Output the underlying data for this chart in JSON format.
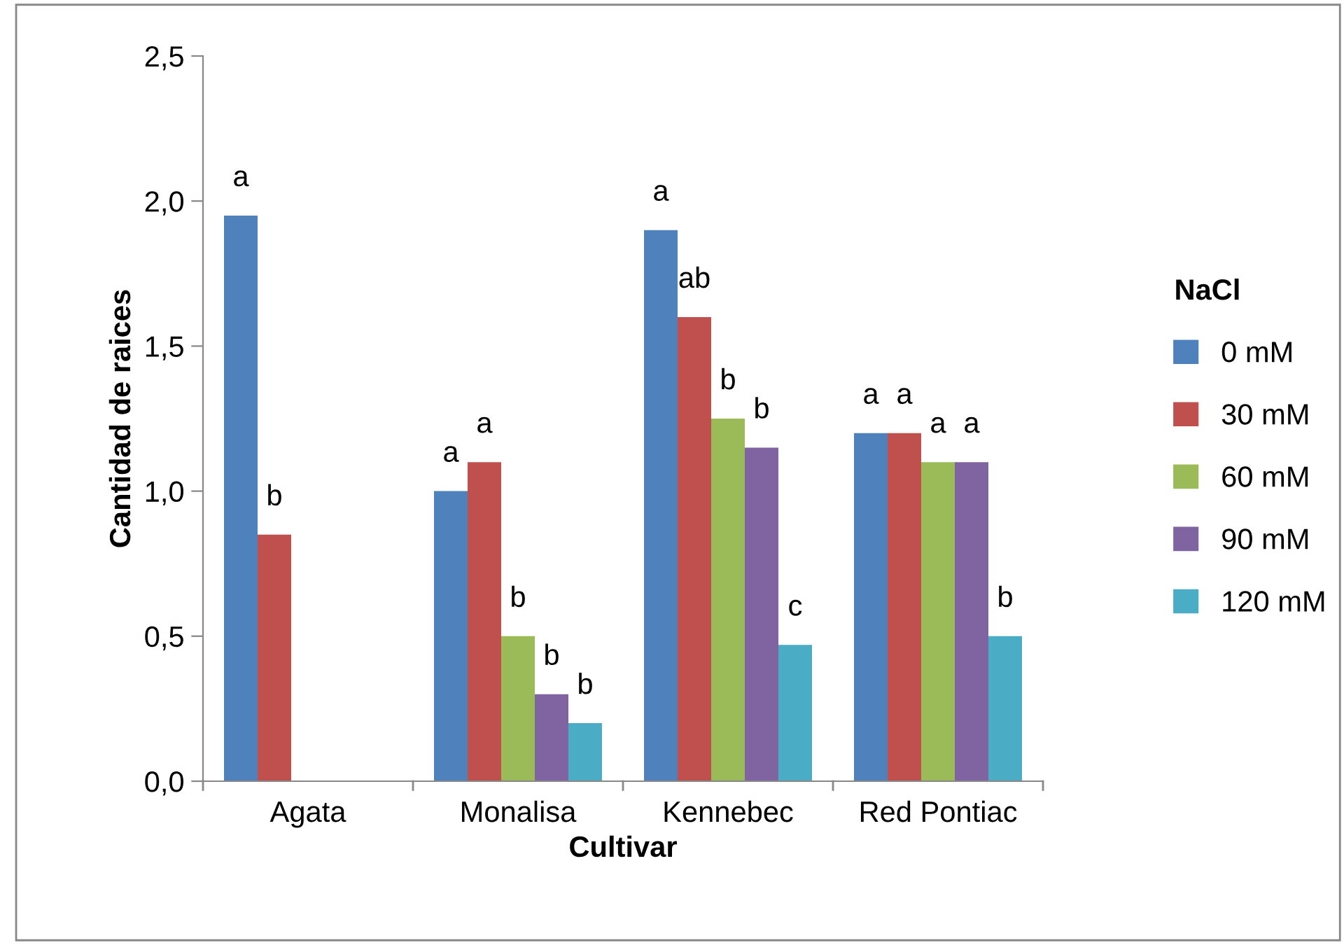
{
  "chart_data": {
    "type": "bar",
    "xlabel": "Cultivar",
    "ylabel": "Cantidad de raices",
    "legend_title": "NaCl",
    "legend": "right",
    "grid": false,
    "categories": [
      "Agata",
      "Monalisa",
      "Kennebec",
      "Red Pontiac"
    ],
    "ylim": [
      0,
      2.5
    ],
    "yticks": [
      {
        "value": 0,
        "label": "0,0"
      },
      {
        "value": 0.5,
        "label": "0,5"
      },
      {
        "value": 1,
        "label": "1,0"
      },
      {
        "value": 1.5,
        "label": "1,5"
      },
      {
        "value": 2,
        "label": "2,0"
      },
      {
        "value": 2.5,
        "label": "2,5"
      }
    ],
    "series": [
      {
        "name": "0 mM",
        "color": "#4f81bd",
        "values": [
          1.95,
          1.0,
          1.9,
          1.2
        ],
        "value_labels": [
          "a",
          "a",
          "a",
          "a"
        ]
      },
      {
        "name": "30 mM",
        "color": "#c0504d",
        "values": [
          0.85,
          1.1,
          1.6,
          1.2
        ],
        "value_labels": [
          "b",
          "a",
          "ab",
          "a"
        ]
      },
      {
        "name": "60 mM",
        "color": "#9bbb59",
        "values": [
          null,
          0.5,
          1.25,
          1.1
        ],
        "value_labels": [
          null,
          "b",
          "b",
          "a"
        ]
      },
      {
        "name": "90 mM",
        "color": "#8064a2",
        "values": [
          null,
          0.3,
          1.15,
          1.1
        ],
        "value_labels": [
          null,
          "b",
          "b",
          "a"
        ]
      },
      {
        "name": "120 mM",
        "color": "#4bacc6",
        "values": [
          null,
          0.2,
          0.47,
          0.5
        ],
        "value_labels": [
          null,
          "b",
          "c",
          "b"
        ]
      }
    ]
  }
}
